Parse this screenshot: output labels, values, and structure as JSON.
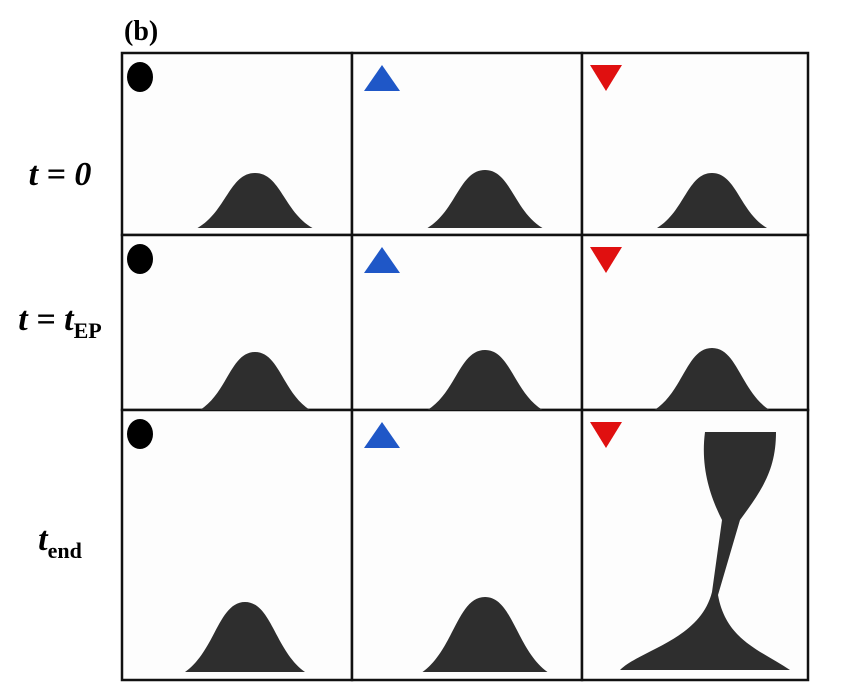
{
  "panel_label": "(b)",
  "rows": [
    {
      "base": "t = 0"
    },
    {
      "base": "t = t",
      "sub": "EP"
    },
    {
      "base": "t",
      "sub": "end"
    }
  ]
}
